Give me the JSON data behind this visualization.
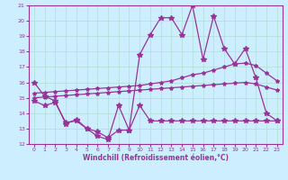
{
  "xlabel": "Windchill (Refroidissement éolien,°C)",
  "bg_color": "#cceeff",
  "grid_color": "#b0ddd0",
  "line_color": "#993399",
  "xlim": [
    -0.5,
    23.5
  ],
  "ylim": [
    12,
    21
  ],
  "yticks": [
    12,
    13,
    14,
    15,
    16,
    17,
    18,
    19,
    20,
    21
  ],
  "xticks": [
    0,
    1,
    2,
    3,
    4,
    5,
    6,
    7,
    8,
    9,
    10,
    11,
    12,
    13,
    14,
    15,
    16,
    17,
    18,
    19,
    20,
    21,
    22,
    23
  ],
  "line1_x": [
    0,
    1,
    2,
    3,
    4,
    5,
    6,
    7,
    8,
    9,
    10,
    11,
    12,
    13,
    14,
    15,
    16,
    17,
    18,
    19,
    20,
    21,
    22,
    23
  ],
  "line1_y": [
    16.0,
    15.1,
    14.8,
    13.3,
    13.6,
    13.0,
    12.5,
    12.3,
    14.5,
    12.9,
    17.8,
    19.1,
    20.2,
    20.2,
    19.1,
    21.0,
    17.5,
    20.3,
    18.2,
    17.2,
    18.2,
    16.3,
    14.0,
    13.5
  ],
  "line2_x": [
    0,
    1,
    2,
    3,
    4,
    5,
    6,
    7,
    8,
    9,
    10,
    11,
    12,
    13,
    14,
    15,
    16,
    17,
    18,
    19,
    20,
    21,
    22,
    23
  ],
  "line2_y": [
    15.3,
    15.35,
    15.4,
    15.45,
    15.5,
    15.55,
    15.6,
    15.65,
    15.7,
    15.75,
    15.8,
    15.9,
    16.0,
    16.1,
    16.3,
    16.5,
    16.6,
    16.8,
    17.0,
    17.2,
    17.25,
    17.1,
    16.6,
    16.1
  ],
  "line3_x": [
    0,
    1,
    2,
    3,
    4,
    5,
    6,
    7,
    8,
    9,
    10,
    11,
    12,
    13,
    14,
    15,
    16,
    17,
    18,
    19,
    20,
    21,
    22,
    23
  ],
  "line3_y": [
    15.0,
    15.05,
    15.1,
    15.15,
    15.2,
    15.25,
    15.3,
    15.35,
    15.4,
    15.45,
    15.5,
    15.55,
    15.6,
    15.65,
    15.7,
    15.75,
    15.8,
    15.85,
    15.9,
    15.95,
    16.0,
    15.9,
    15.7,
    15.5
  ],
  "line4_x": [
    0,
    1,
    2,
    3,
    4,
    5,
    6,
    7,
    8,
    9,
    10,
    11,
    12,
    13,
    14,
    15,
    16,
    17,
    18,
    19,
    20,
    21,
    22,
    23
  ],
  "line4_y": [
    14.8,
    14.5,
    14.7,
    13.4,
    13.5,
    13.0,
    12.8,
    12.4,
    12.9,
    12.9,
    14.5,
    13.5,
    13.5,
    13.5,
    13.5,
    13.5,
    13.5,
    13.5,
    13.5,
    13.5,
    13.5,
    13.5,
    13.5,
    13.5
  ]
}
